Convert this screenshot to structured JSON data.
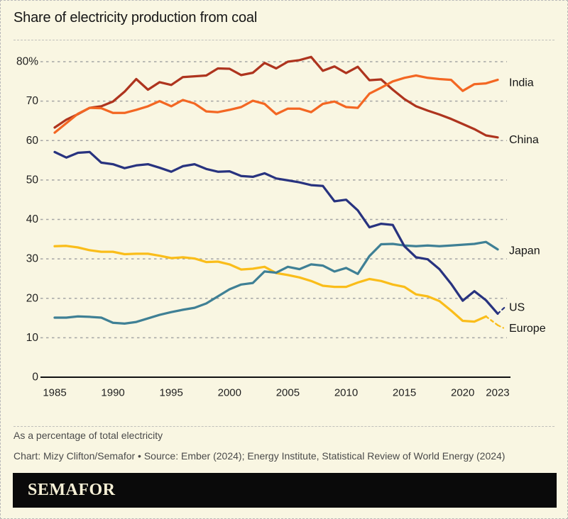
{
  "title": "Share of electricity production from coal",
  "footnote": "As a percentage of total electricity",
  "credit": "Chart: Mizy Clifton/Semafor • Source: Ember (2024); Energy Institute, Statistical Review of World Energy (2024)",
  "logo": "SEMAFOR",
  "ui_colors": {
    "background": "#f9f6e2",
    "gridline": "#a5a5a5",
    "axis": "#111111",
    "tick_text": "#1f1f1f",
    "label_text": "#151515",
    "footer_text": "#4a4a4a",
    "logo_bar": "#0a0a0a",
    "logo_text": "#f6f0d6"
  },
  "chart_data": {
    "type": "line",
    "title": "Share of electricity production from coal",
    "ylabel": "% of total electricity",
    "ylim": [
      0,
      85
    ],
    "grid": "horizontal-dashed",
    "legend_position": "right-of-line-ends",
    "x": [
      1985,
      1986,
      1987,
      1988,
      1989,
      1990,
      1991,
      1992,
      1993,
      1994,
      1995,
      1996,
      1997,
      1998,
      1999,
      2000,
      2001,
      2002,
      2003,
      2004,
      2005,
      2006,
      2007,
      2008,
      2009,
      2010,
      2011,
      2012,
      2013,
      2014,
      2015,
      2016,
      2017,
      2018,
      2019,
      2020,
      2021,
      2022,
      2023
    ],
    "xticks": [
      {
        "year": 1985,
        "label": "1985"
      },
      {
        "year": 1990,
        "label": "1990"
      },
      {
        "year": 1995,
        "label": "1995"
      },
      {
        "year": 2000,
        "label": "2000"
      },
      {
        "year": 2005,
        "label": "2005"
      },
      {
        "year": 2010,
        "label": "2010"
      },
      {
        "year": 2015,
        "label": "2015"
      },
      {
        "year": 2020,
        "label": "2020"
      },
      {
        "year": 2023,
        "label": "2023"
      }
    ],
    "yticks": [
      {
        "v": 0,
        "label": "0"
      },
      {
        "v": 10,
        "label": "10"
      },
      {
        "v": 20,
        "label": "20"
      },
      {
        "v": 30,
        "label": "30"
      },
      {
        "v": 40,
        "label": "40"
      },
      {
        "v": 50,
        "label": "50"
      },
      {
        "v": 60,
        "label": "60"
      },
      {
        "v": 70,
        "label": "70"
      },
      {
        "v": 80,
        "label": "80%"
      }
    ],
    "series": [
      {
        "name": "europe",
        "label": "Europe",
        "color": "#fabd1a",
        "label_v": 12.3,
        "dash_last_segment": true,
        "leader": {
          "dx": 8,
          "dv": -0.7
        },
        "values": [
          33.2,
          33.3,
          32.9,
          32.2,
          31.8,
          31.8,
          31.2,
          31.3,
          31.3,
          30.8,
          30.2,
          30.4,
          30.1,
          29.2,
          29.3,
          28.6,
          27.3,
          27.5,
          28.0,
          26.4,
          25.9,
          25.3,
          24.4,
          23.2,
          22.9,
          22.9,
          24.0,
          24.9,
          24.4,
          23.5,
          22.9,
          21.0,
          20.5,
          19.3,
          16.9,
          14.3,
          14.1,
          15.4,
          13.2
        ]
      },
      {
        "name": "japan",
        "label": "Japan",
        "color": "#3f8095",
        "label_v": 32.0,
        "values": [
          15.1,
          15.1,
          15.4,
          15.3,
          15.1,
          13.8,
          13.6,
          14.0,
          14.9,
          15.8,
          16.5,
          17.1,
          17.6,
          18.7,
          20.5,
          22.3,
          23.5,
          23.9,
          26.8,
          26.5,
          28.0,
          27.4,
          28.6,
          28.3,
          26.8,
          27.7,
          26.2,
          30.7,
          33.7,
          33.8,
          33.4,
          33.2,
          33.4,
          33.2,
          33.4,
          33.6,
          33.8,
          34.3,
          32.4
        ]
      },
      {
        "name": "us",
        "label": "US",
        "color": "#28337f",
        "label_v": 17.6,
        "leader": {
          "dx": 11,
          "dv": 1.8
        },
        "values": [
          57.1,
          55.7,
          56.9,
          57.1,
          54.4,
          54.0,
          53.0,
          53.7,
          54.0,
          53.1,
          52.1,
          53.5,
          54.0,
          52.8,
          52.1,
          52.2,
          51.0,
          50.8,
          51.7,
          50.4,
          49.9,
          49.4,
          48.7,
          48.5,
          44.6,
          45.0,
          42.3,
          38.0,
          38.9,
          38.6,
          33.2,
          30.4,
          29.9,
          27.4,
          23.7,
          19.4,
          21.8,
          19.5,
          16.1
        ]
      },
      {
        "name": "china",
        "label": "China",
        "color": "#ae341e",
        "label_v": 60.1,
        "values": [
          63.3,
          65.3,
          66.7,
          68.3,
          68.7,
          69.9,
          72.4,
          75.6,
          72.9,
          74.8,
          74.1,
          76.1,
          76.3,
          76.5,
          78.3,
          78.2,
          76.6,
          77.2,
          79.7,
          78.3,
          80.0,
          80.4,
          81.2,
          77.7,
          78.8,
          77.1,
          78.7,
          75.3,
          75.5,
          72.9,
          70.5,
          68.7,
          67.6,
          66.6,
          65.5,
          64.2,
          62.9,
          61.3,
          60.8
        ]
      },
      {
        "name": "india",
        "label": "India",
        "color": "#f36723",
        "label_v": 74.6,
        "values": [
          62.0,
          64.4,
          66.8,
          68.3,
          68.2,
          67.0,
          67.0,
          67.8,
          68.7,
          70.0,
          68.7,
          70.3,
          69.4,
          67.4,
          67.2,
          67.8,
          68.5,
          70.1,
          69.3,
          66.7,
          68.1,
          68.1,
          67.2,
          69.3,
          69.9,
          68.5,
          68.3,
          71.9,
          73.4,
          75.0,
          75.9,
          76.5,
          75.9,
          75.6,
          75.4,
          72.6,
          74.3,
          74.5,
          75.4
        ]
      }
    ],
    "layout": {
      "x0": 76,
      "xstep": 16.42,
      "y0": 531,
      "yscale": 5.5625,
      "grid_x_min": 56,
      "grid_x_max": 713,
      "axis_x_max": 718,
      "label_x": 716,
      "ytick_x": 53,
      "xtick_y": 553,
      "line_width": 3.25
    }
  }
}
